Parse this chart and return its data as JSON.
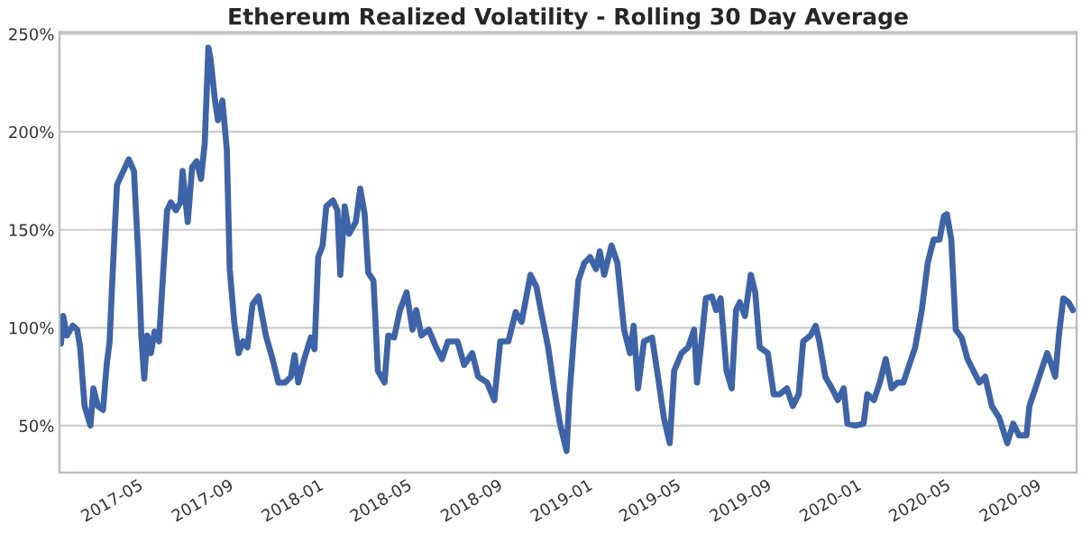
{
  "chart_data": {
    "type": "line",
    "title": "Ethereum Realized Volatility - Rolling 30 Day Average",
    "x": [
      "2017-01-06",
      "2017-01-09",
      "2017-01-14",
      "2017-01-22",
      "2017-01-28",
      "2017-02-01",
      "2017-02-07",
      "2017-02-15",
      "2017-02-19",
      "2017-02-25",
      "2017-03-04",
      "2017-03-09",
      "2017-03-13",
      "2017-03-17",
      "2017-03-23",
      "2017-04-03",
      "2017-04-08",
      "2017-04-15",
      "2017-04-21",
      "2017-04-25",
      "2017-04-29",
      "2017-05-03",
      "2017-05-08",
      "2017-05-13",
      "2017-05-19",
      "2017-05-24",
      "2017-05-30",
      "2017-06-04",
      "2017-06-11",
      "2017-06-17",
      "2017-06-20",
      "2017-06-27",
      "2017-07-03",
      "2017-07-09",
      "2017-07-15",
      "2017-07-20",
      "2017-07-25",
      "2017-07-28",
      "2017-08-03",
      "2017-08-07",
      "2017-08-13",
      "2017-08-19",
      "2017-08-23",
      "2017-08-29",
      "2017-09-04",
      "2017-09-10",
      "2017-09-16",
      "2017-09-23",
      "2017-10-01",
      "2017-10-11",
      "2017-10-20",
      "2017-10-28",
      "2017-11-06",
      "2017-11-14",
      "2017-11-19",
      "2017-11-24",
      "2017-12-02",
      "2017-12-11",
      "2017-12-16",
      "2017-12-21",
      "2017-12-27",
      "2018-01-01",
      "2018-01-10",
      "2018-01-16",
      "2018-01-20",
      "2018-01-26",
      "2018-02-01",
      "2018-02-10",
      "2018-02-16",
      "2018-02-22",
      "2018-02-27",
      "2018-03-06",
      "2018-03-12",
      "2018-03-21",
      "2018-03-26",
      "2018-04-03",
      "2018-04-11",
      "2018-04-20",
      "2018-04-28",
      "2018-05-03",
      "2018-05-10",
      "2018-05-20",
      "2018-05-30",
      "2018-06-07",
      "2018-06-15",
      "2018-06-28",
      "2018-07-07",
      "2018-07-18",
      "2018-07-26",
      "2018-08-07",
      "2018-08-17",
      "2018-08-25",
      "2018-09-05",
      "2018-09-15",
      "2018-09-23",
      "2018-10-05",
      "2018-10-13",
      "2018-10-19",
      "2018-10-29",
      "2018-11-06",
      "2018-11-14",
      "2018-11-23",
      "2018-11-27",
      "2018-12-03",
      "2018-12-09",
      "2018-12-17",
      "2018-12-25",
      "2019-01-02",
      "2019-01-07",
      "2019-01-13",
      "2019-01-23",
      "2019-01-31",
      "2019-02-09",
      "2019-02-17",
      "2019-02-22",
      "2019-02-28",
      "2019-03-08",
      "2019-03-19",
      "2019-03-27",
      "2019-04-04",
      "2019-04-12",
      "2019-04-18",
      "2019-04-28",
      "2019-05-07",
      "2019-05-15",
      "2019-05-19",
      "2019-05-25",
      "2019-05-31",
      "2019-06-08",
      "2019-06-14",
      "2019-06-20",
      "2019-06-28",
      "2019-07-05",
      "2019-07-11",
      "2019-07-16",
      "2019-07-23",
      "2019-07-31",
      "2019-08-06",
      "2019-08-12",
      "2019-08-23",
      "2019-08-31",
      "2019-09-08",
      "2019-09-18",
      "2019-09-26",
      "2019-10-04",
      "2019-10-10",
      "2019-10-20",
      "2019-10-27",
      "2019-11-01",
      "2019-11-09",
      "2019-11-18",
      "2019-11-26",
      "2019-12-04",
      "2019-12-09",
      "2019-12-20",
      "2019-12-31",
      "2020-01-05",
      "2020-01-14",
      "2020-01-22",
      "2020-01-30",
      "2020-02-07",
      "2020-02-15",
      "2020-02-23",
      "2020-03-02",
      "2020-03-10",
      "2020-03-19",
      "2020-03-27",
      "2020-04-04",
      "2020-04-12",
      "2020-04-18",
      "2020-04-22",
      "2020-04-28",
      "2020-05-04",
      "2020-05-12",
      "2020-05-20",
      "2020-05-28",
      "2020-06-05",
      "2020-06-13",
      "2020-06-22",
      "2020-07-02",
      "2020-07-13",
      "2020-07-21",
      "2020-07-29",
      "2020-08-08",
      "2020-08-12",
      "2020-08-20",
      "2020-08-28",
      "2020-09-05",
      "2020-09-11",
      "2020-09-16",
      "2020-09-21",
      "2020-09-27",
      "2020-10-04",
      "2020-10-10"
    ],
    "series": [
      {
        "color": "#3d64a8",
        "values": [
          92,
          106,
          96,
          101,
          99,
          90,
          60,
          50,
          69,
          60,
          58,
          81,
          93,
          127,
          173,
          182,
          186,
          180,
          136,
          96,
          74,
          96,
          87,
          98,
          93,
          124,
          160,
          164,
          160,
          164,
          180,
          154,
          182,
          185,
          176,
          194,
          243,
          237,
          216,
          206,
          216,
          191,
          130,
          103,
          87,
          93,
          90,
          112,
          116,
          96,
          84,
          72,
          72,
          75,
          86,
          72,
          84,
          95,
          89,
          136,
          142,
          162,
          165,
          160,
          127,
          162,
          148,
          154,
          171,
          158,
          128,
          124,
          78,
          72,
          96,
          95,
          109,
          118,
          99,
          109,
          96,
          99,
          90,
          84,
          93,
          93,
          81,
          87,
          75,
          72,
          63,
          93,
          93,
          108,
          103,
          127,
          121,
          109,
          90,
          69,
          51,
          37,
          66,
          96,
          124,
          133,
          136,
          130,
          139,
          127,
          142,
          133,
          99,
          87,
          101,
          69,
          93,
          95,
          75,
          54,
          41,
          78,
          87,
          90,
          99,
          72,
          93,
          115,
          116,
          109,
          115,
          78,
          69,
          109,
          113,
          106,
          127,
          118,
          90,
          87,
          66,
          66,
          69,
          60,
          66,
          93,
          96,
          101,
          93,
          75,
          69,
          63,
          69,
          51,
          50,
          51,
          66,
          63,
          72,
          84,
          69,
          72,
          72,
          81,
          90,
          109,
          133,
          145,
          145,
          157,
          158,
          145,
          99,
          95,
          84,
          78,
          72,
          75,
          60,
          54,
          41,
          51,
          45,
          45,
          60,
          69,
          78,
          87,
          81,
          75,
          96,
          115,
          113,
          109
        ]
      }
    ],
    "xlim": [
      "2017-01-04",
      "2020-10-15"
    ],
    "xticks": [
      {
        "value": "2017-05-01",
        "label": "2017-05"
      },
      {
        "value": "2017-09-01",
        "label": "2017-09"
      },
      {
        "value": "2018-01-01",
        "label": "2018-01"
      },
      {
        "value": "2018-05-01",
        "label": "2018-05"
      },
      {
        "value": "2018-09-01",
        "label": "2018-09"
      },
      {
        "value": "2019-01-01",
        "label": "2019-01"
      },
      {
        "value": "2019-05-01",
        "label": "2019-05"
      },
      {
        "value": "2019-09-01",
        "label": "2019-09"
      },
      {
        "value": "2020-01-01",
        "label": "2020-01"
      },
      {
        "value": "2020-05-01",
        "label": "2020-05"
      },
      {
        "value": "2020-09-01",
        "label": "2020-09"
      }
    ],
    "ylim": [
      26,
      251
    ],
    "yticks": [
      {
        "value": 50,
        "label": "50%"
      },
      {
        "value": 100,
        "label": "100%"
      },
      {
        "value": 150,
        "label": "150%"
      },
      {
        "value": 200,
        "label": "200%"
      },
      {
        "value": 250,
        "label": "250%"
      }
    ],
    "grid": "y",
    "legend": false,
    "marker": "none",
    "line_style": "solid"
  }
}
